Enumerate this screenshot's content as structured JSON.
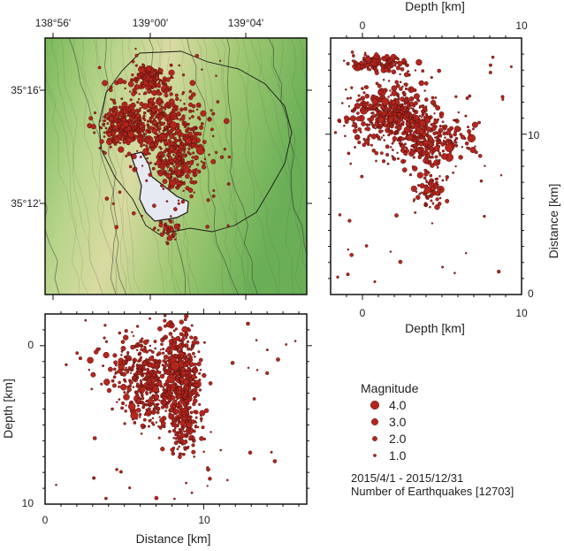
{
  "chart_data": [
    {
      "panel": "map",
      "type": "scatter",
      "x_ticks": [
        "138°56'",
        "139°00'",
        "139°04'"
      ],
      "y_ticks": [
        "35°16'",
        "35°12'"
      ]
    },
    {
      "panel": "cross-section-east",
      "type": "scatter",
      "xlabel": "Depth [km]",
      "ylabel": "Distance [km]",
      "xlim": [
        -2,
        10
      ],
      "ylim": [
        0,
        16
      ],
      "x_ticks": [
        "0",
        "10"
      ],
      "y_ticks": [
        "10",
        "0"
      ]
    },
    {
      "panel": "cross-section-south",
      "type": "scatter",
      "xlabel": "Distance [km]",
      "ylabel": "Depth [km]",
      "xlim": [
        0,
        16.5
      ],
      "ylim": [
        10,
        -2
      ],
      "x_ticks": [
        "0",
        "10"
      ],
      "y_ticks": [
        "0",
        "10"
      ]
    }
  ],
  "legend": {
    "title": "Magnitude",
    "items": [
      {
        "label": "4.0",
        "mag": 4.0
      },
      {
        "label": "3.0",
        "mag": 3.0
      },
      {
        "label": "2.0",
        "mag": 2.0
      },
      {
        "label": "1.0",
        "mag": 1.0
      }
    ]
  },
  "info": {
    "period": "2015/4/1 - 2015/12/31",
    "count": "Number of Earthquakes [12703]"
  },
  "colors": {
    "quake_fill": "#b3261e",
    "quake_stroke": "#3a0a06",
    "terrain_low": "#7ab95c",
    "terrain_mid": "#c9d88a",
    "terrain_high": "#e7e3b0",
    "lake": "#e6e8f2"
  }
}
